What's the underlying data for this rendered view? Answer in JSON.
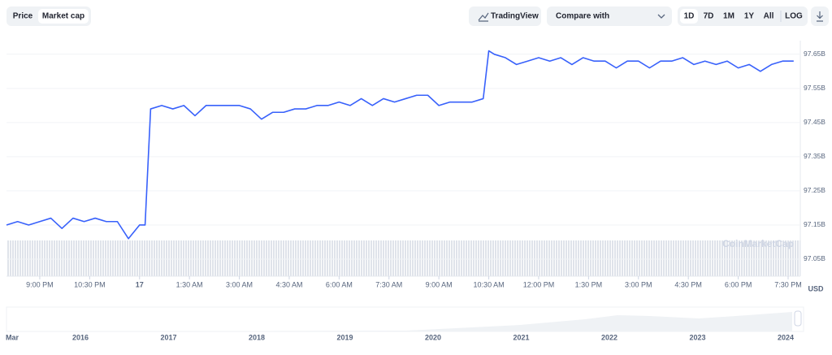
{
  "toolbar": {
    "price": "Price",
    "market_cap": "Market cap",
    "tradingview": "TradingView",
    "compare": "Compare with",
    "ranges": [
      "1D",
      "7D",
      "1M",
      "1Y",
      "All"
    ],
    "log": "LOG"
  },
  "watermark": "CoinMarketCap",
  "currency": "USD",
  "navigator": {
    "labels": [
      "Mar",
      "2016",
      "2017",
      "2018",
      "2019",
      "2020",
      "2021",
      "2022",
      "2023",
      "2024"
    ]
  },
  "chart_data": {
    "type": "line",
    "x": [
      -60,
      -40,
      -20,
      0,
      20,
      40,
      60,
      80,
      100,
      120,
      140,
      160,
      180,
      190,
      200,
      220,
      240,
      260,
      280,
      300,
      320,
      340,
      360,
      380,
      400,
      420,
      440,
      460,
      480,
      500,
      520,
      540,
      560,
      580,
      600,
      620,
      640,
      660,
      680,
      700,
      720,
      740,
      760,
      780,
      800,
      810,
      820,
      840,
      860,
      880,
      900,
      920,
      940,
      960,
      980,
      1000,
      1020,
      1040,
      1060,
      1080,
      1100,
      1120,
      1140,
      1160,
      1180,
      1200,
      1220,
      1240,
      1260,
      1280,
      1300,
      1320,
      1340,
      1360
    ],
    "series": [
      {
        "name": "Market cap",
        "color": "#3861fb",
        "values": [
          97150000000,
          97160000000,
          97150000000,
          97160000000,
          97170000000,
          97140000000,
          97170000000,
          97160000000,
          97170000000,
          97160000000,
          97160000000,
          97110000000,
          97150000000,
          97150000000,
          97490000000,
          97500000000,
          97490000000,
          97500000000,
          97470000000,
          97500000000,
          97500000000,
          97500000000,
          97500000000,
          97490000000,
          97460000000,
          97480000000,
          97480000000,
          97490000000,
          97490000000,
          97500000000,
          97500000000,
          97510000000,
          97500000000,
          97520000000,
          97500000000,
          97520000000,
          97510000000,
          97520000000,
          97530000000,
          97530000000,
          97500000000,
          97510000000,
          97510000000,
          97510000000,
          97520000000,
          97660000000,
          97650000000,
          97640000000,
          97620000000,
          97630000000,
          97640000000,
          97630000000,
          97640000000,
          97620000000,
          97640000000,
          97630000000,
          97630000000,
          97610000000,
          97630000000,
          97630000000,
          97610000000,
          97630000000,
          97630000000,
          97640000000,
          97620000000,
          97630000000,
          97620000000,
          97630000000,
          97610000000,
          97620000000,
          97600000000,
          97620000000,
          97630000000,
          97630000000
        ]
      }
    ],
    "xlim": [
      -60,
      1372
    ],
    "xticks": [
      {
        "value": 0,
        "label": "9:00 PM"
      },
      {
        "value": 90,
        "label": "10:30 PM"
      },
      {
        "value": 180,
        "label": "17"
      },
      {
        "value": 270,
        "label": "1:30 AM"
      },
      {
        "value": 360,
        "label": "3:00 AM"
      },
      {
        "value": 450,
        "label": "4:30 AM"
      },
      {
        "value": 540,
        "label": "6:00 AM"
      },
      {
        "value": 630,
        "label": "7:30 AM"
      },
      {
        "value": 720,
        "label": "9:00 AM"
      },
      {
        "value": 810,
        "label": "10:30 AM"
      },
      {
        "value": 900,
        "label": "12:00 PM"
      },
      {
        "value": 990,
        "label": "1:30 PM"
      },
      {
        "value": 1080,
        "label": "3:00 PM"
      },
      {
        "value": 1170,
        "label": "4:30 PM"
      },
      {
        "value": 1260,
        "label": "6:00 PM"
      },
      {
        "value": 1350,
        "label": "7:30 PM"
      }
    ],
    "ylim": [
      97000000000,
      97690000000
    ],
    "yticks": [
      {
        "value": 97050000000,
        "label": "97.05B"
      },
      {
        "value": 97150000000,
        "label": "97.15B"
      },
      {
        "value": 97250000000,
        "label": "97.25B"
      },
      {
        "value": 97350000000,
        "label": "97.35B"
      },
      {
        "value": 97450000000,
        "label": "97.45B"
      },
      {
        "value": 97550000000,
        "label": "97.55B"
      },
      {
        "value": 97650000000,
        "label": "97.65B"
      }
    ],
    "grid": true
  }
}
